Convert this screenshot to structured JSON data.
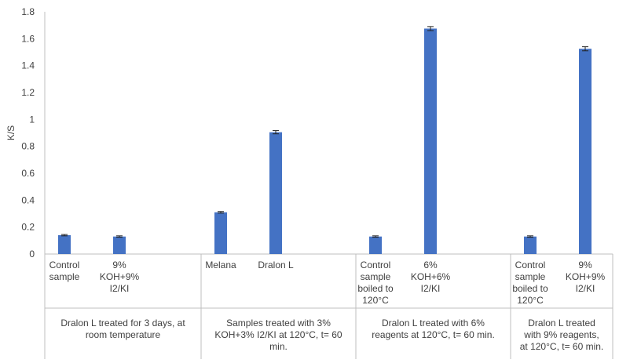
{
  "chart_data": {
    "type": "bar",
    "ylabel": "K/S",
    "ylim": [
      0,
      1.8
    ],
    "yticks": [
      "0",
      "0.2",
      "0.4",
      "0.6",
      "0.8",
      "1",
      "1.2",
      "1.4",
      "1.6",
      "1.8"
    ],
    "bar_color": "#4472c4",
    "groups": [
      {
        "label": "Dralon L  treated for 3 days, at\nroom temperature",
        "categories": [
          {
            "label": "Control\nsample",
            "value": 0.14,
            "error": 0.005
          },
          {
            "label": "9%\nKOH+9%\nI2/KI",
            "value": 0.13,
            "error": 0.005
          }
        ]
      },
      {
        "label": "Samples treated with 3%\nKOH+3% I2/KI at 120°C, t= 60\nmin.",
        "categories": [
          {
            "label": "Melana",
            "value": 0.31,
            "error": 0.006
          },
          {
            "label": "Dralon L",
            "value": 0.905,
            "error": 0.012
          }
        ]
      },
      {
        "label": "Dralon L treated with 6%\nreagents at 120°C, t= 60 min.",
        "categories": [
          {
            "label": "Control\nsample\nboiled to\n120°C",
            "value": 0.13,
            "error": 0.005
          },
          {
            "label": "6%\nKOH+6%\nI2/KI",
            "value": 1.675,
            "error": 0.015
          }
        ]
      },
      {
        "label": "Dralon L treated\nwith  9% reagents,\nat 120°C, t= 60 min.",
        "categories": [
          {
            "label": "Control\nsample\nboiled to\n120°C",
            "value": 0.13,
            "error": 0.005
          },
          {
            "label": "9%\nKOH+9%\nI2/KI",
            "value": 1.525,
            "error": 0.015
          }
        ]
      }
    ]
  }
}
